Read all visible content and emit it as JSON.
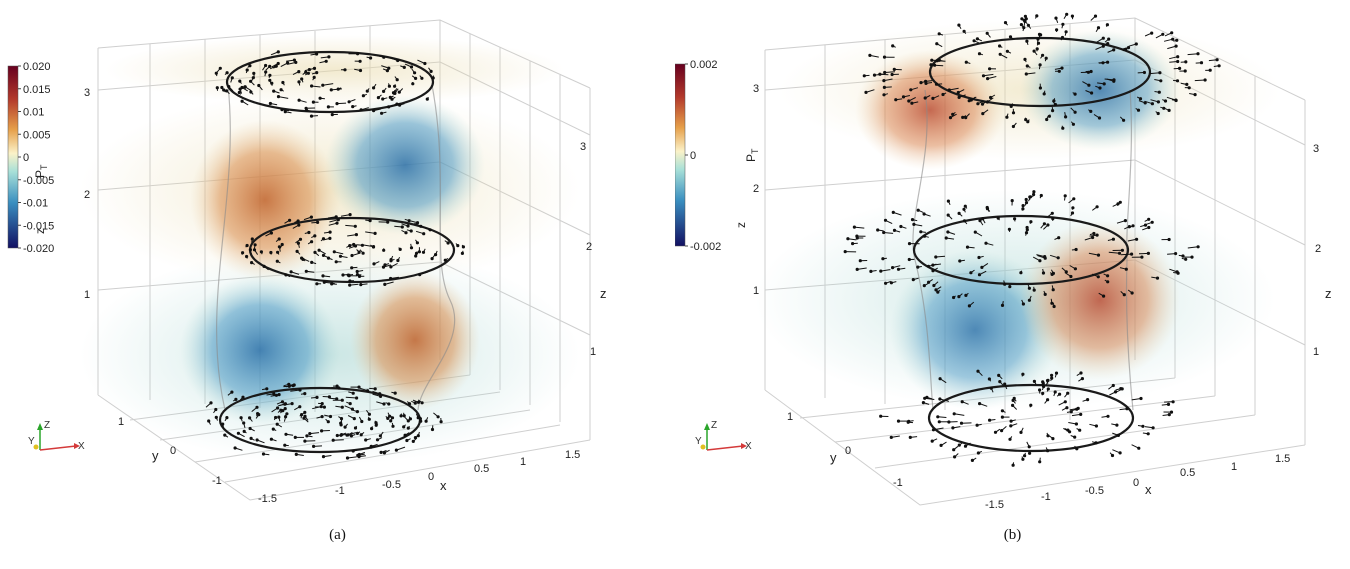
{
  "figures": [
    {
      "caption": "(a)",
      "colorbar": {
        "title_main": "P",
        "title_sub": "T",
        "title_z": "z",
        "ticks": [
          "0.020",
          "0.015",
          "0.01",
          "0.005",
          "0",
          "-0.005",
          "-0.01",
          "-0.015",
          "-0.020"
        ]
      },
      "axes": {
        "x_label": "x",
        "y_label": "y",
        "z_label": "z",
        "x_ticks": [
          "-1.5",
          "-1",
          "-0.5",
          "0",
          "0.5",
          "1",
          "1.5"
        ],
        "y_ticks": [
          "1",
          "0",
          "-1"
        ],
        "z_ticks_left": [
          "1",
          "2",
          "3"
        ],
        "z_ticks_right": [
          "1",
          "2",
          "3"
        ]
      },
      "orientation": {
        "x": "X",
        "y": "Y",
        "z": "Z"
      }
    },
    {
      "caption": "(b)",
      "colorbar": {
        "title_main": "P",
        "title_sub": "T",
        "title_z": "z",
        "ticks": [
          "0.002",
          "0",
          "-0.002"
        ]
      },
      "axes": {
        "x_label": "x",
        "y_label": "y",
        "z_label": "z",
        "x_ticks": [
          "-1.5",
          "-1",
          "-0.5",
          "0",
          "0.5",
          "1",
          "1.5"
        ],
        "y_ticks": [
          "1",
          "0",
          "-1"
        ],
        "z_ticks_left": [
          "1",
          "2",
          "3"
        ],
        "z_ticks_right": [
          "1",
          "2",
          "3"
        ]
      },
      "orientation": {
        "x": "X",
        "y": "Y",
        "z": "Z"
      }
    }
  ],
  "colors": {
    "positive": "#c0622b",
    "negative": "#2f7fb0",
    "neutral_pos": "#e8d9a8",
    "neutral_neg": "#a9d6d2",
    "grid": "#c8c8c8",
    "ring": "#1a1a1a"
  }
}
